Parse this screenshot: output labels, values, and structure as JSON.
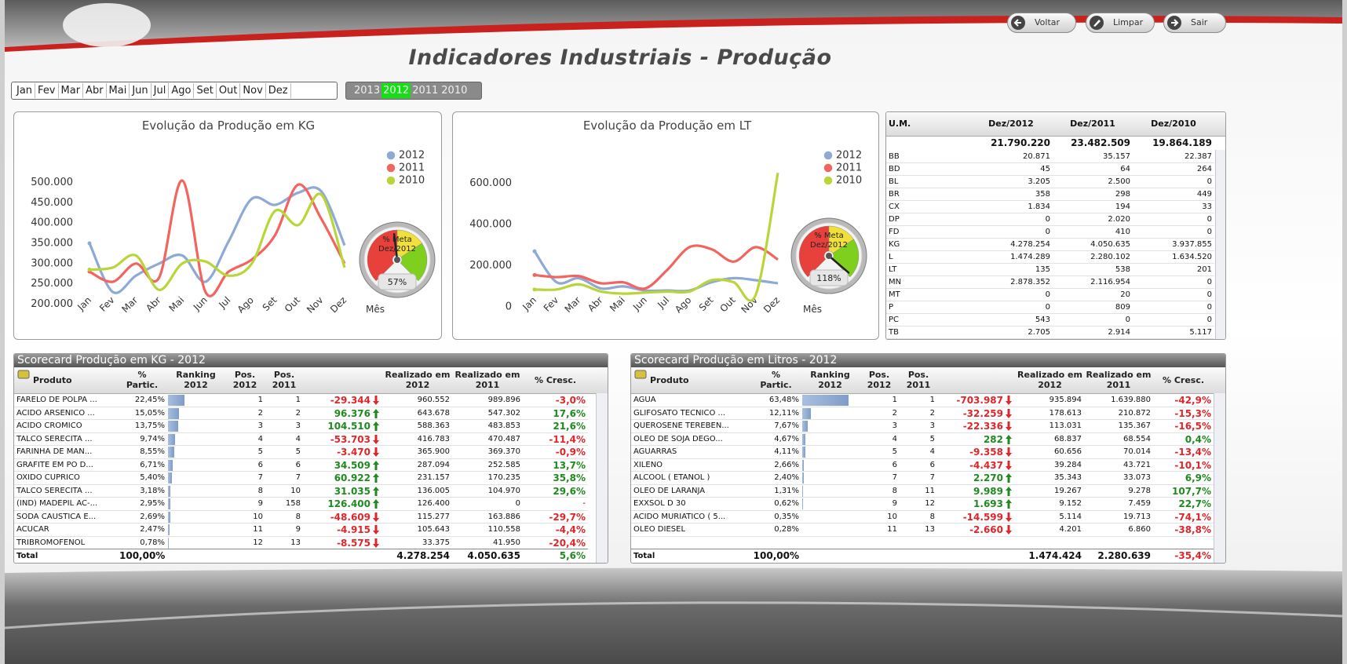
{
  "header": {
    "title": "Indicadores Industriais - Produção",
    "buttons": [
      "Voltar",
      "Limpar",
      "Sair"
    ]
  },
  "filters": {
    "months": [
      "Jan",
      "Fev",
      "Mar",
      "Abr",
      "Mai",
      "Jun",
      "Jul",
      "Ago",
      "Set",
      "Out",
      "Nov",
      "Dez"
    ],
    "years": [
      "2013",
      "2012",
      "2011",
      "2010"
    ],
    "selected_year": 1
  },
  "chart_data": [
    {
      "type": "line",
      "title": "Evolução da Produção em KG",
      "x_label": "Mês",
      "categories": [
        "Jan",
        "Fev",
        "Mar",
        "Abr",
        "Mai",
        "Jun",
        "Jul",
        "Ago",
        "Set",
        "Out",
        "Nov",
        "Dez"
      ],
      "series": [
        {
          "name": "2012",
          "color": "#8ea9d6",
          "values": [
            350000,
            230000,
            270000,
            300000,
            320000,
            255000,
            355000,
            460000,
            445000,
            475000,
            478000,
            345000
          ]
        },
        {
          "name": "2011",
          "color": "#f2645e",
          "values": [
            280000,
            255000,
            300000,
            265000,
            505000,
            230000,
            280000,
            310000,
            370000,
            495000,
            410000,
            300000
          ]
        },
        {
          "name": "2010",
          "color": "#b8d63a",
          "values": [
            285000,
            290000,
            320000,
            235000,
            300000,
            305000,
            270000,
            300000,
            430000,
            395000,
            470000,
            290000
          ]
        }
      ],
      "ylim": [
        160000,
        540000
      ],
      "yticks": [
        {
          "value": 200000,
          "label": "200.000"
        },
        {
          "value": 250000,
          "label": "250.000"
        },
        {
          "value": 300000,
          "label": "300.000"
        },
        {
          "value": 350000,
          "label": "350.000"
        },
        {
          "value": 400000,
          "label": "400.000"
        },
        {
          "value": 450000,
          "label": "450.000"
        },
        {
          "value": 500000,
          "label": "500.000"
        }
      ],
      "gauge": {
        "title": [
          "% Meta",
          "Dez/2012"
        ],
        "values": [
          57
        ],
        "value_labels": [
          "57%"
        ],
        "range": [
          0,
          120
        ],
        "bands": [
          {
            "from": 0,
            "to": 60,
            "color": "#e8413c"
          },
          {
            "from": 60,
            "to": 85,
            "color": "#f2e03a"
          },
          {
            "from": 85,
            "to": 120,
            "color": "#7fcf1f"
          }
        ]
      }
    },
    {
      "type": "line",
      "title": "Evolução da Produção em LT",
      "x_label": "Mês",
      "categories": [
        "Jan",
        "Fev",
        "Mar",
        "Abr",
        "Mai",
        "Jun",
        "Jul",
        "Ago",
        "Set",
        "Out",
        "Nov",
        "Dez"
      ],
      "series": [
        {
          "name": "2012",
          "color": "#8ea9d6",
          "values": [
            270000,
            120000,
            140000,
            90000,
            100000,
            80000,
            80000,
            80000,
            120000,
            140000,
            130000,
            115000
          ]
        },
        {
          "name": "2011",
          "color": "#f2645e",
          "values": [
            155000,
            145000,
            150000,
            115000,
            120000,
            90000,
            180000,
            290000,
            280000,
            220000,
            290000,
            230000
          ]
        },
        {
          "name": "2010",
          "color": "#b8d63a",
          "values": [
            85000,
            85000,
            110000,
            75000,
            65000,
            70000,
            75000,
            75000,
            130000,
            120000,
            60000,
            650000
          ]
        }
      ],
      "ylim": [
        -60000,
        700000
      ],
      "yticks": [
        0,
        {
          "value": 200000,
          "label": "200.000"
        },
        {
          "value": 400000,
          "label": "400.000"
        },
        {
          "value": 600000,
          "label": "600.000"
        }
      ],
      "gauge": {
        "title": [
          "% Meta",
          "Dez/2012"
        ],
        "values": [
          118
        ],
        "value_labels": [
          "118%"
        ],
        "range": [
          0,
          120
        ],
        "bands": [
          {
            "from": 0,
            "to": 60,
            "color": "#e8413c"
          },
          {
            "from": 60,
            "to": 85,
            "color": "#f2e03a"
          },
          {
            "from": 85,
            "to": 120,
            "color": "#7fcf1f"
          }
        ]
      }
    }
  ],
  "um_table": {
    "columns": [
      "U.M.",
      "Dez/2012",
      "Dez/2011",
      "Dez/2010"
    ],
    "totals": [
      "21.790.220",
      "23.482.509",
      "19.864.189"
    ],
    "rows": [
      [
        "BB",
        "20.871",
        "35.157",
        "22.387"
      ],
      [
        "BD",
        "45",
        "64",
        "264"
      ],
      [
        "BL",
        "3.205",
        "2.500",
        "0"
      ],
      [
        "BR",
        "358",
        "298",
        "449"
      ],
      [
        "CX",
        "1.834",
        "194",
        "33"
      ],
      [
        "DP",
        "0",
        "2.020",
        "0"
      ],
      [
        "FD",
        "0",
        "410",
        "0"
      ],
      [
        "KG",
        "4.278.254",
        "4.050.635",
        "3.937.855"
      ],
      [
        "L",
        "1.474.289",
        "2.280.102",
        "1.634.520"
      ],
      [
        "LT",
        "135",
        "538",
        "201"
      ],
      [
        "MN",
        "2.878.352",
        "2.116.954",
        "0"
      ],
      [
        "MT",
        "0",
        "20",
        "0"
      ],
      [
        "P",
        "0",
        "809",
        "0"
      ],
      [
        "PC",
        "543",
        "0",
        "0"
      ],
      [
        "TB",
        "2.705",
        "2.914",
        "5.117"
      ]
    ]
  },
  "scorecards": [
    {
      "title": "Scorecard Produção em KG - 2012",
      "columns": [
        [
          "Produto"
        ],
        [
          "%",
          "Partic."
        ],
        [
          "Ranking",
          "2012"
        ],
        [
          "Pos.",
          "2012"
        ],
        [
          "Pos.",
          "2011"
        ],
        [
          "Realizado em",
          "2012"
        ],
        [
          "Realizado em",
          "2011"
        ],
        [
          "% Cresc."
        ]
      ],
      "rows": [
        {
          "name": "FARELO DE POLPA ...",
          "share": 22.45,
          "share_label": "22,45%",
          "pos_2012": 1,
          "pos_2011": 1,
          "change": "-29.344",
          "real_2012": "960.552",
          "real_2011": "989.896",
          "growth": "-3,0%"
        },
        {
          "name": "ACIDO ARSENICO ...",
          "share": 15.05,
          "share_label": "15,05%",
          "pos_2012": 2,
          "pos_2011": 2,
          "change": "96.376",
          "real_2012": "643.678",
          "real_2011": "547.302",
          "growth": "17,6%"
        },
        {
          "name": "ACIDO CROMICO",
          "share": 13.75,
          "share_label": "13,75%",
          "pos_2012": 3,
          "pos_2011": 3,
          "change": "104.510",
          "real_2012": "588.363",
          "real_2011": "483.853",
          "growth": "21,6%"
        },
        {
          "name": "TALCO SERECITA ...",
          "share": 9.74,
          "share_label": "9,74%",
          "pos_2012": 4,
          "pos_2011": 4,
          "change": "-53.703",
          "real_2012": "416.783",
          "real_2011": "470.487",
          "growth": "-11,4%"
        },
        {
          "name": "FARINHA DE MAN...",
          "share": 8.55,
          "share_label": "8,55%",
          "pos_2012": 5,
          "pos_2011": 5,
          "change": "-3.470",
          "real_2012": "365.900",
          "real_2011": "369.370",
          "growth": "-0,9%"
        },
        {
          "name": "GRAFITE EM PO D...",
          "share": 6.71,
          "share_label": "6,71%",
          "pos_2012": 6,
          "pos_2011": 6,
          "change": "34.509",
          "real_2012": "287.094",
          "real_2011": "252.585",
          "growth": "13,7%"
        },
        {
          "name": "OXIDO CUPRICO",
          "share": 5.4,
          "share_label": "5,40%",
          "pos_2012": 7,
          "pos_2011": 7,
          "change": "60.922",
          "real_2012": "231.157",
          "real_2011": "170.235",
          "growth": "35,8%"
        },
        {
          "name": "TALCO SERECITA ...",
          "share": 3.18,
          "share_label": "3,18%",
          "pos_2012": 8,
          "pos_2011": 10,
          "change": "31.035",
          "real_2012": "136.005",
          "real_2011": "104.970",
          "growth": "29,6%"
        },
        {
          "name": "(IND) MADEPIL AC-...",
          "share": 2.95,
          "share_label": "2,95%",
          "pos_2012": 9,
          "pos_2011": 158,
          "change": "126.400",
          "real_2012": "126.400",
          "real_2011": "0",
          "growth": "-"
        },
        {
          "name": "SODA CAUSTICA E...",
          "share": 2.69,
          "share_label": "2,69%",
          "pos_2012": 10,
          "pos_2011": 8,
          "change": "-48.609",
          "real_2012": "115.277",
          "real_2011": "163.886",
          "growth": "-29,7%"
        },
        {
          "name": "ACUCAR",
          "share": 2.47,
          "share_label": "2,47%",
          "pos_2012": 11,
          "pos_2011": 9,
          "change": "-4.915",
          "real_2012": "105.643",
          "real_2011": "110.558",
          "growth": "-4,4%"
        },
        {
          "name": "TRIBROMOFENOL",
          "share": 0.78,
          "share_label": "0,78%",
          "pos_2012": 12,
          "pos_2011": 13,
          "change": "-8.575",
          "real_2012": "33.375",
          "real_2011": "41.950",
          "growth": "-20,4%"
        }
      ],
      "total": {
        "name": "Total",
        "share_label": "100,00%",
        "real_2012": "4.278.254",
        "real_2011": "4.050.635",
        "growth": "5,6%"
      }
    },
    {
      "title": "Scorecard Produção em Litros - 2012",
      "columns": [
        [
          "Produto"
        ],
        [
          "%",
          "Partic."
        ],
        [
          "Ranking",
          "2012"
        ],
        [
          "Pos.",
          "2012"
        ],
        [
          "Pos.",
          "2011"
        ],
        [
          "Realizado em",
          "2012"
        ],
        [
          "Realizado em",
          "2011"
        ],
        [
          "% Cresc."
        ]
      ],
      "rows": [
        {
          "name": "AGUA",
          "share": 63.48,
          "share_label": "63,48%",
          "pos_2012": 1,
          "pos_2011": 1,
          "change": "-703.987",
          "real_2012": "935.894",
          "real_2011": "1.639.880",
          "growth": "-42,9%"
        },
        {
          "name": "GLIFOSATO TECNICO ...",
          "share": 12.11,
          "share_label": "12,11%",
          "pos_2012": 2,
          "pos_2011": 2,
          "change": "-32.259",
          "real_2012": "178.613",
          "real_2011": "210.872",
          "growth": "-15,3%"
        },
        {
          "name": "QUEROSENE TEREBEN...",
          "share": 7.67,
          "share_label": "7,67%",
          "pos_2012": 3,
          "pos_2011": 3,
          "change": "-22.336",
          "real_2012": "113.031",
          "real_2011": "135.367",
          "growth": "-16,5%"
        },
        {
          "name": "OLEO DE SOJA DEGO...",
          "share": 4.67,
          "share_label": "4,67%",
          "pos_2012": 4,
          "pos_2011": 5,
          "change": "282",
          "real_2012": "68.837",
          "real_2011": "68.554",
          "growth": "0,4%"
        },
        {
          "name": "AGUARRAS",
          "share": 4.11,
          "share_label": "4,11%",
          "pos_2012": 5,
          "pos_2011": 4,
          "change": "-9.358",
          "real_2012": "60.656",
          "real_2011": "70.014",
          "growth": "-13,4%"
        },
        {
          "name": "XILENO",
          "share": 2.66,
          "share_label": "2,66%",
          "pos_2012": 6,
          "pos_2011": 6,
          "change": "-4.437",
          "real_2012": "39.284",
          "real_2011": "43.721",
          "growth": "-10,1%"
        },
        {
          "name": "ALCOOL ( ETANOL )",
          "share": 2.4,
          "share_label": "2,40%",
          "pos_2012": 7,
          "pos_2011": 7,
          "change": "2.270",
          "real_2012": "35.343",
          "real_2011": "33.073",
          "growth": "6,9%"
        },
        {
          "name": "OLEO DE LARANJA",
          "share": 1.31,
          "share_label": "1,31%",
          "pos_2012": 8,
          "pos_2011": 11,
          "change": "9.989",
          "real_2012": "19.267",
          "real_2011": "9.278",
          "growth": "107,7%"
        },
        {
          "name": "EXXSOL D 30",
          "share": 0.62,
          "share_label": "0,62%",
          "pos_2012": 9,
          "pos_2011": 12,
          "change": "1.693",
          "real_2012": "9.152",
          "real_2011": "7.459",
          "growth": "22,7%"
        },
        {
          "name": "ACIDO MURIATICO ( 5...",
          "share": 0.35,
          "share_label": "0,35%",
          "pos_2012": 10,
          "pos_2011": 8,
          "change": "-14.599",
          "real_2012": "5.114",
          "real_2011": "19.713",
          "growth": "-74,1%"
        },
        {
          "name": "OLEO DIESEL",
          "share": 0.28,
          "share_label": "0,28%",
          "pos_2012": 11,
          "pos_2011": 13,
          "change": "-2.660",
          "real_2012": "4.201",
          "real_2011": "6.860",
          "growth": "-38,8%"
        }
      ],
      "total": {
        "name": "Total",
        "share_label": "100,00%",
        "real_2012": "1.474.424",
        "real_2011": "2.280.639",
        "growth": "-35,4%"
      }
    }
  ]
}
